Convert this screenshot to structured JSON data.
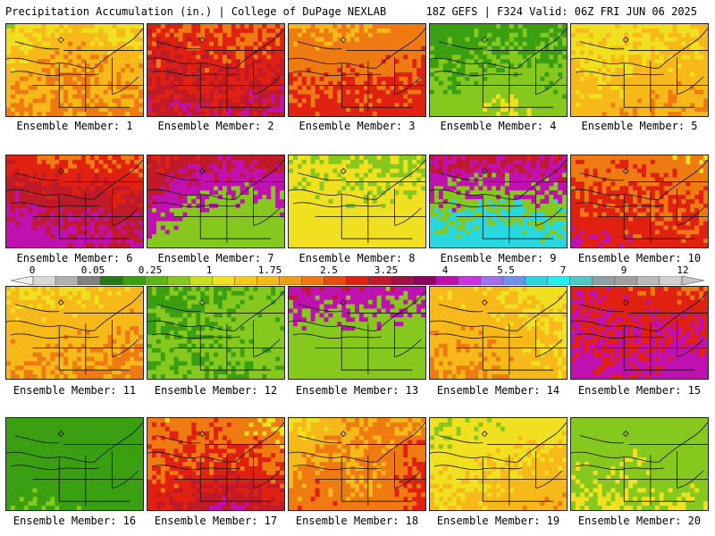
{
  "header": {
    "left": "Precipitation Accumulation (in.) | College of DuPage NEXLAB",
    "right": "18Z GEFS | F324 Valid: 06Z FRI JUN 06 2025"
  },
  "caption_prefix": "Ensemble Member:",
  "members": [
    {
      "id": 1,
      "caption": "Ensemble Member: 1",
      "palette": [
        "#3aa012",
        "#86c81e",
        "#f0e020",
        "#f7b81a",
        "#f07a12",
        "#e02010",
        "#c01a2a"
      ],
      "bias": [
        0.3,
        0.45,
        0.7
      ]
    },
    {
      "id": 2,
      "caption": "Ensemble Member: 2",
      "palette": [
        "#3aa012",
        "#86c81e",
        "#f0e020",
        "#f7b81a",
        "#f07a12",
        "#e02010",
        "#c01a2a",
        "#c010b0"
      ],
      "bias": [
        0.25,
        0.35,
        0.85
      ]
    },
    {
      "id": 3,
      "caption": "Ensemble Member: 3",
      "palette": [
        "#86c81e",
        "#f0e020",
        "#f7b81a",
        "#f07a12",
        "#e02010",
        "#c01a2a"
      ],
      "bias": [
        0.4,
        0.5,
        0.6
      ]
    },
    {
      "id": 4,
      "caption": "Ensemble Member: 4",
      "palette": [
        "#287818",
        "#3aa012",
        "#86c81e",
        "#f0e020",
        "#f7b81a",
        "#e02010"
      ],
      "bias": [
        0.2,
        0.3,
        0.55
      ]
    },
    {
      "id": 5,
      "caption": "Ensemble Member: 5",
      "palette": [
        "#3aa012",
        "#86c81e",
        "#f0e020",
        "#f7b81a",
        "#f07a12",
        "#e02010"
      ],
      "bias": [
        0.3,
        0.4,
        0.65
      ]
    },
    {
      "id": 6,
      "caption": "Ensemble Member: 6",
      "palette": [
        "#f0e020",
        "#f7b81a",
        "#f07a12",
        "#e02010",
        "#c01a2a",
        "#c010b0"
      ],
      "bias": [
        0.45,
        0.6,
        0.75
      ]
    },
    {
      "id": 7,
      "caption": "Ensemble Member: 7",
      "palette": [
        "#f7b81a",
        "#f07a12",
        "#e02010",
        "#c01a2a",
        "#c010b0",
        "#86c81e"
      ],
      "bias": [
        0.55,
        0.7,
        0.8
      ]
    },
    {
      "id": 8,
      "caption": "Ensemble Member: 8",
      "palette": [
        "#3aa012",
        "#86c81e",
        "#f0e020",
        "#f7b81a",
        "#f07a12"
      ],
      "bias": [
        0.3,
        0.45,
        0.55
      ]
    },
    {
      "id": 9,
      "caption": "Ensemble Member: 9",
      "palette": [
        "#f0e020",
        "#f07a12",
        "#e02010",
        "#c01a2a",
        "#c010b0",
        "#86c81e",
        "#28d8e0"
      ],
      "bias": [
        0.45,
        0.6,
        0.85
      ]
    },
    {
      "id": 10,
      "caption": "Ensemble Member: 10",
      "palette": [
        "#3aa012",
        "#86c81e",
        "#f0e020",
        "#f07a12",
        "#e02010",
        "#c010b0"
      ],
      "bias": [
        0.35,
        0.5,
        0.7
      ]
    },
    {
      "id": 11,
      "caption": "Ensemble Member: 11",
      "palette": [
        "#3aa012",
        "#86c81e",
        "#f0e020",
        "#f7b81a",
        "#f07a12",
        "#e02010"
      ],
      "bias": [
        0.3,
        0.45,
        0.6
      ]
    },
    {
      "id": 12,
      "caption": "Ensemble Member: 12",
      "palette": [
        "#287818",
        "#3aa012",
        "#86c81e",
        "#f0e020",
        "#f07a12",
        "#e02010"
      ],
      "bias": [
        0.15,
        0.25,
        0.55
      ]
    },
    {
      "id": 13,
      "caption": "Ensemble Member: 13",
      "palette": [
        "#f7b81a",
        "#f07a12",
        "#e02010",
        "#c01a2a",
        "#c010b0",
        "#86c81e"
      ],
      "bias": [
        0.55,
        0.7,
        0.8
      ]
    },
    {
      "id": 14,
      "caption": "Ensemble Member: 14",
      "palette": [
        "#3aa012",
        "#86c81e",
        "#f0e020",
        "#f7b81a",
        "#f07a12",
        "#e02010"
      ],
      "bias": [
        0.3,
        0.4,
        0.6
      ]
    },
    {
      "id": 15,
      "caption": "Ensemble Member: 15",
      "palette": [
        "#86c81e",
        "#f0e020",
        "#f7b81a",
        "#f07a12",
        "#e02010",
        "#c010b0"
      ],
      "bias": [
        0.4,
        0.55,
        0.75
      ]
    },
    {
      "id": 16,
      "caption": "Ensemble Member: 16",
      "palette": [
        "#287818",
        "#3aa012",
        "#86c81e",
        "#a0a0a0",
        "#f0e020"
      ],
      "bias": [
        0.15,
        0.25,
        0.4
      ]
    },
    {
      "id": 17,
      "caption": "Ensemble Member: 17",
      "palette": [
        "#3aa012",
        "#86c81e",
        "#f0e020",
        "#f07a12",
        "#e02010",
        "#c01a2a",
        "#c010b0"
      ],
      "bias": [
        0.4,
        0.5,
        0.75
      ]
    },
    {
      "id": 18,
      "caption": "Ensemble Member: 18",
      "palette": [
        "#3aa012",
        "#86c81e",
        "#f0e020",
        "#f7b81a",
        "#f07a12",
        "#e02010",
        "#a0a0a0"
      ],
      "bias": [
        0.35,
        0.45,
        0.65
      ]
    },
    {
      "id": 19,
      "caption": "Ensemble Member: 19",
      "palette": [
        "#3aa012",
        "#86c81e",
        "#f0e020",
        "#f7b81a",
        "#f07a12",
        "#e02010"
      ],
      "bias": [
        0.3,
        0.4,
        0.6
      ]
    },
    {
      "id": 20,
      "caption": "Ensemble Member: 20",
      "palette": [
        "#3aa012",
        "#86c81e",
        "#f0e020",
        "#f7b81a"
      ],
      "bias": [
        0.3,
        0.4,
        0.5
      ]
    }
  ],
  "colorbar": {
    "labels": [
      "0",
      "0.05",
      "0.25",
      "1",
      "1.75",
      "2.5",
      "3.25",
      "4",
      "5.5",
      "7",
      "9",
      "12"
    ],
    "colors": [
      "#d8d8d8",
      "#b0b0b0",
      "#808080",
      "#287818",
      "#3aa012",
      "#5cb418",
      "#86c81e",
      "#c8e020",
      "#f0e020",
      "#f7c81a",
      "#f7b81a",
      "#f39a16",
      "#f07a12",
      "#e84a10",
      "#e02010",
      "#c01a2a",
      "#a01040",
      "#900060",
      "#c010b0",
      "#d030e0",
      "#a070f0",
      "#7090f0",
      "#28d8e0",
      "#20f0f0",
      "#50c8c8",
      "#90a0a0",
      "#a0a0a0",
      "#b8b8b8",
      "#d0d0d0"
    ]
  }
}
